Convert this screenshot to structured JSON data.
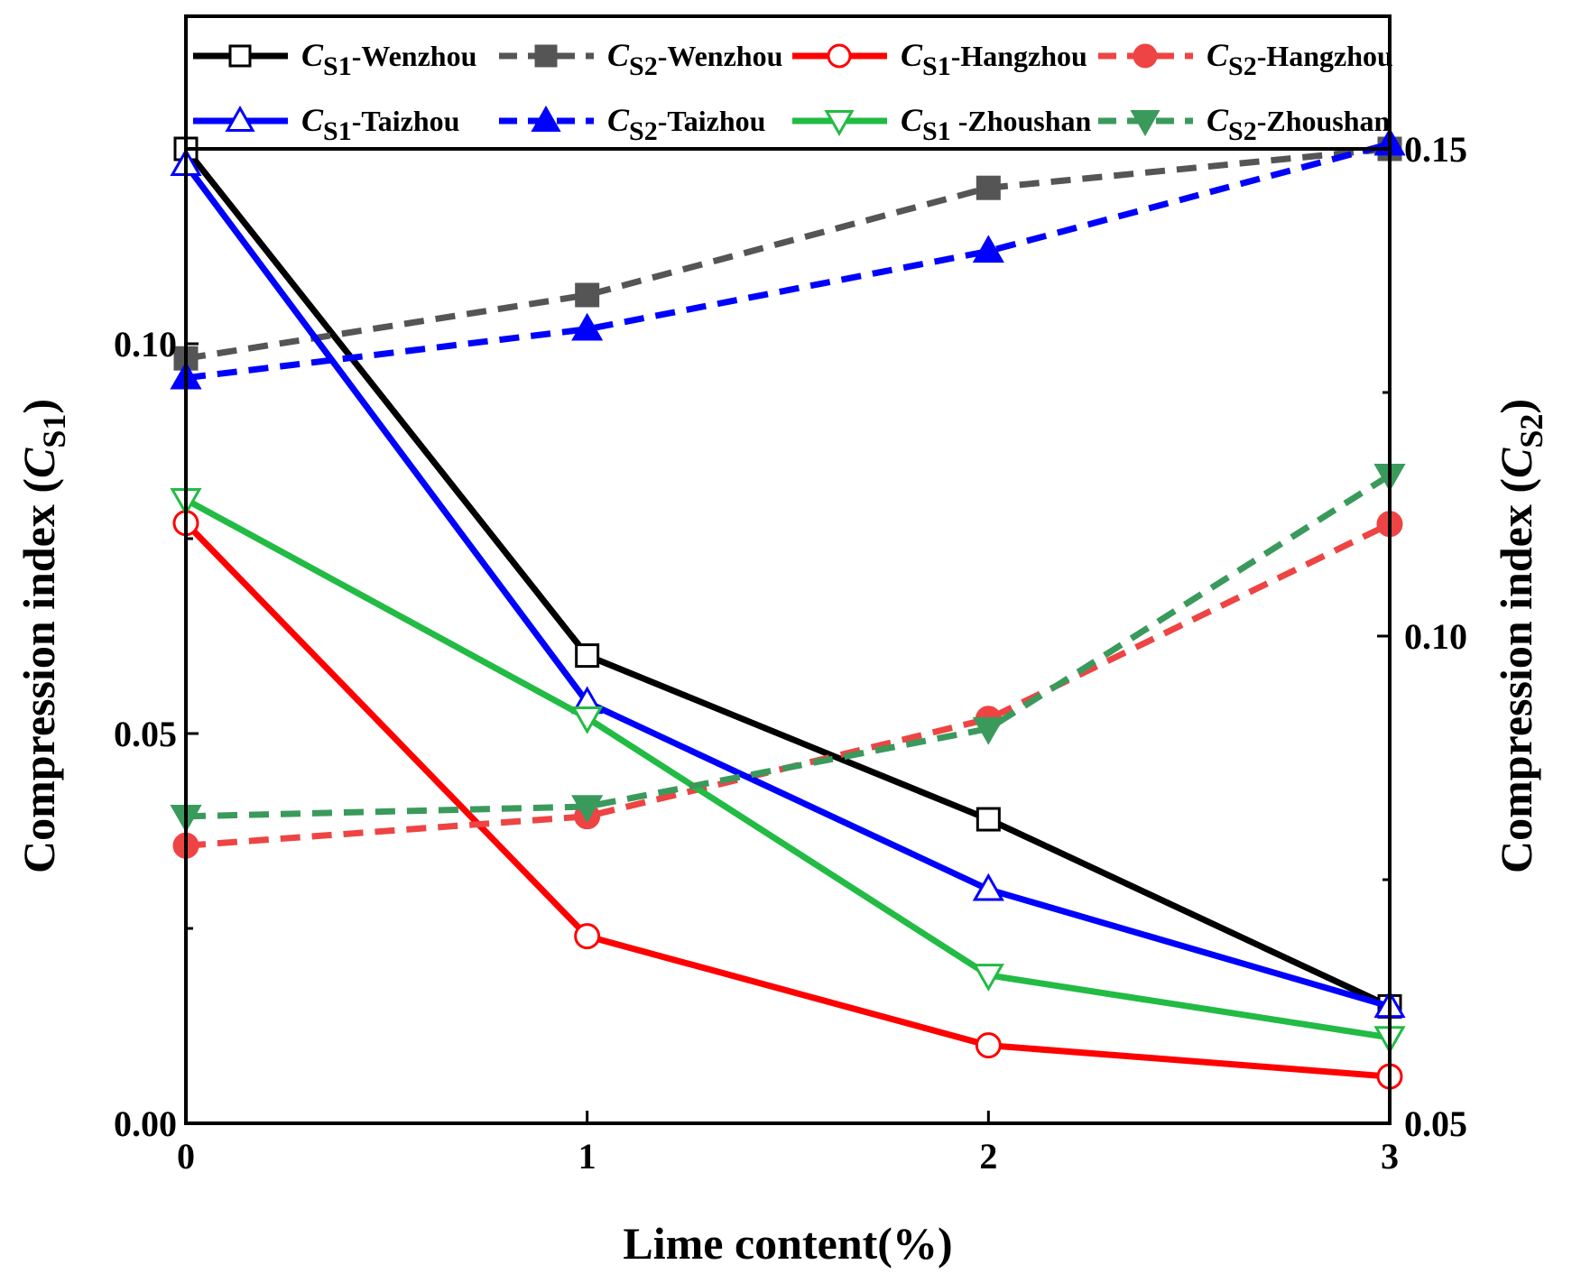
{
  "chart_data": {
    "type": "line",
    "xlabel": "Lime content(%)",
    "ylabel_left": {
      "prefix": "Compression index (",
      "symbol": "C",
      "sub": "S1",
      "suffix": ")"
    },
    "ylabel_right": {
      "prefix": "Compression index (",
      "symbol": "C",
      "sub": "S2",
      "suffix": ")"
    },
    "x": [
      0,
      1,
      2,
      3
    ],
    "x_ticks": [
      "0",
      "1",
      "2",
      "3"
    ],
    "xlim": [
      0,
      3
    ],
    "ylim_left": [
      0,
      0.125
    ],
    "yticks_left": [
      "0.00",
      "0.05",
      "0.10"
    ],
    "ylim_right": [
      0.05,
      0.15
    ],
    "yticks_right": [
      "0.05",
      "0.10",
      "0.15"
    ],
    "legend_position": "top",
    "series": [
      {
        "id": "cs1-wenzhou",
        "axis": "left",
        "symbol": "C",
        "sub": "S1",
        "label_suffix": "-Wenzhou",
        "color": "#000000",
        "dash": "solid",
        "marker": "square",
        "filled": false,
        "values": [
          0.125,
          0.06,
          0.039,
          0.015
        ]
      },
      {
        "id": "cs2-wenzhou",
        "axis": "right",
        "symbol": "C",
        "sub": "S2",
        "label_suffix": "-Wenzhou",
        "color": "#555555",
        "dash": "dashed",
        "marker": "square",
        "filled": true,
        "values": [
          0.1285,
          0.135,
          0.146,
          0.15
        ]
      },
      {
        "id": "cs1-hangzhou",
        "axis": "left",
        "symbol": "C",
        "sub": "S1",
        "label_suffix": "-Hangzhou",
        "color": "#ff0000",
        "dash": "solid",
        "marker": "circle",
        "filled": false,
        "values": [
          0.077,
          0.024,
          0.01,
          0.006
        ]
      },
      {
        "id": "cs2-hangzhou",
        "axis": "right",
        "symbol": "C",
        "sub": "S2",
        "label_suffix": "-Hangzhou",
        "color": "#ee4444",
        "dash": "dashed",
        "marker": "circle",
        "filled": true,
        "values": [
          0.0785,
          0.0815,
          0.0915,
          0.1115
        ]
      },
      {
        "id": "cs1-taizhou",
        "axis": "left",
        "symbol": "C",
        "sub": "S1",
        "label_suffix": "-Taizhou",
        "color": "#0000ff",
        "dash": "solid",
        "marker": "triangle-up",
        "filled": false,
        "values": [
          0.123,
          0.054,
          0.03,
          0.015
        ]
      },
      {
        "id": "cs2-taizhou",
        "axis": "right",
        "symbol": "C",
        "sub": "S2",
        "label_suffix": "-Taizhou",
        "color": "#0000ff",
        "dash": "dashed",
        "marker": "triangle-up",
        "filled": true,
        "values": [
          0.1265,
          0.1315,
          0.1395,
          0.1505
        ]
      },
      {
        "id": "cs1-zhoushan",
        "axis": "left",
        "symbol": "C",
        "sub": "S1",
        "label_suffix": " -Zhoushan",
        "color": "#22bb44",
        "dash": "solid",
        "marker": "triangle-down",
        "filled": false,
        "values": [
          0.08,
          0.052,
          0.019,
          0.011
        ]
      },
      {
        "id": "cs2-zhoushan",
        "axis": "right",
        "symbol": "C",
        "sub": "S2",
        "label_suffix": "-Zhoushan",
        "color": "#3a9a5c",
        "dash": "dashed",
        "marker": "triangle-down",
        "filled": true,
        "values": [
          0.0815,
          0.0825,
          0.0905,
          0.1165
        ]
      }
    ]
  }
}
